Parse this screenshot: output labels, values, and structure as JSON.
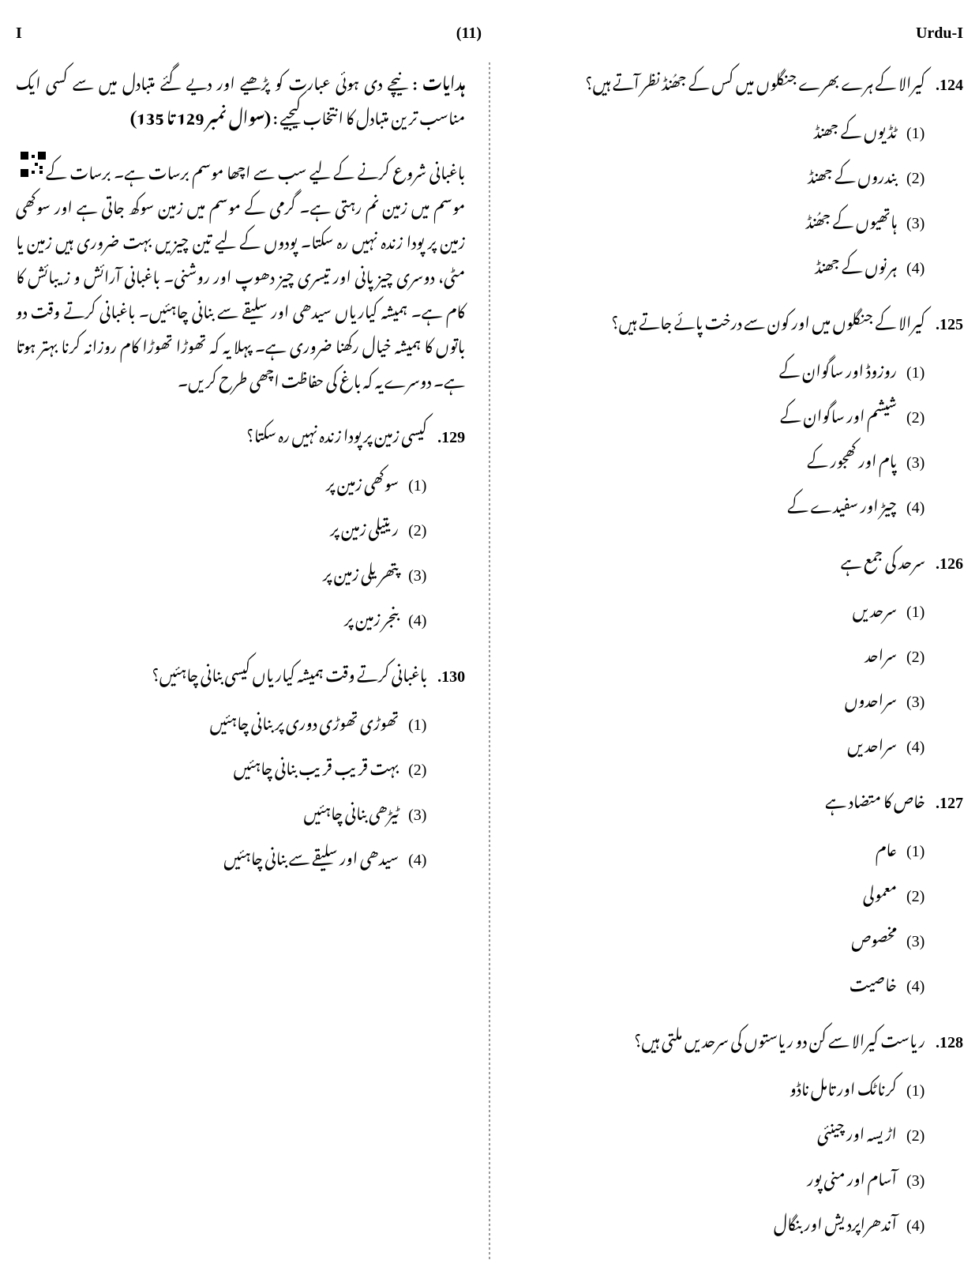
{
  "header": {
    "left": "I",
    "center": "(11)",
    "right": "Urdu-I"
  },
  "rightCol": {
    "q124": {
      "num": ".124",
      "text": "کیرالا کے ہرے بھرے جنگلوں میں کس کے جھُنڈ نظر آتے ہیں؟",
      "opts": [
        "ٹڈیوں کے جھنڈ",
        "بندروں کے جھنڈ",
        "ہاتھیوں کے جھُنڈ",
        "ہرنوں کے جھنڈ"
      ]
    },
    "q125": {
      "num": ".125",
      "text": "کیرالا کے جنگلوں میں اور کون سے درخت پائے جاتے ہیں؟",
      "opts": [
        "روزوڈ اور ساگوان کے",
        "شیشم اور ساگوان کے",
        "پام اور کھجور کے",
        "چیڑ اور سفیدے کے"
      ]
    },
    "q126": {
      "num": ".126",
      "text": "سرحد کی جمع ہے",
      "opts": [
        "سرحدیں",
        "سراحد",
        "سراحدوں",
        "سراحدیں"
      ]
    },
    "q127": {
      "num": ".127",
      "text": "خاص کا متضاد ہے",
      "opts": [
        "عام",
        "معمولی",
        "مخصوص",
        "خاصیت"
      ]
    },
    "q128": {
      "num": ".128",
      "text": "ریاست کیرالا سے کن دو ریاستوں کی سرحدیں ملتی ہیں؟",
      "opts": [
        "کرناٹک اور تامل ناڈو",
        "اڑیسہ اور چینئی",
        "آسام اور منی پور",
        "آندھراپردیش اور بنگال"
      ]
    }
  },
  "leftCol": {
    "instrLabel": "ہدایات :",
    "instrText": "نیچے دی ہوئی عبارت کو پڑھیے اور دیے گئے متبادل میں سے کسی ایک مناسب ترین متبادل کا انتخاب کیجیے :",
    "instrRange": "(سوال نمبر 129 تا 135)",
    "passage": "باغبانی شروع کرنے کے لیے سب سے اچھا موسم برسات ہے۔ برسات کے موسم میں زمین نم رہتی ہے۔ گرمی کے موسم میں زمین سوکھ جاتی ہے اور سوکھی زمین پر پودا زندہ نہیں رہ سکتا۔ پودوں کے لیے تین چیزیں بہت ضروری ہیں زمین یا مٹی، دوسری چیز پانی اور تیسری چیز دھوپ اور روشنی۔ باغبانی آرائش و زیبائش کا کام ہے۔ ہمیشہ کیاریاں سیدھی اور سلیقے سے بنانی چاہئیں۔ باغبانی کرتے وقت دو باتوں کا ہمیشہ خیال رکھنا ضروری ہے۔ پہلا یہ کہ تھوڑا تھوڑا کام روزانہ کرنا بہتر ہوتا ہے۔ دوسرے یہ کہ باغ کی حفاظت اچھی طرح کریں۔",
    "q129": {
      "num": ".129",
      "text": "کیسی زمین پر پودا زندہ نہیں رہ سکتا؟",
      "opts": [
        "سوکھی زمین پر",
        "ریتیلی زمین پر",
        "پتھریلی زمین پر",
        "بنجر زمین پر"
      ]
    },
    "q130": {
      "num": ".130",
      "text": "باغبانی کرتے وقت ہمیشہ کیاریاں کیسی بنانی چاہئیں؟",
      "opts": [
        "تھوڑی تھوڑی دوری پر بنانی چاہئیں",
        "بہت قریب قریب بنانی چاہئیں",
        "ٹیڑھی بنانی چاہئیں",
        "سیدھی اور سلیقے سے بنانی چاہئیں"
      ]
    }
  },
  "optNums": [
    "(1)",
    "(2)",
    "(3)",
    "(4)"
  ]
}
